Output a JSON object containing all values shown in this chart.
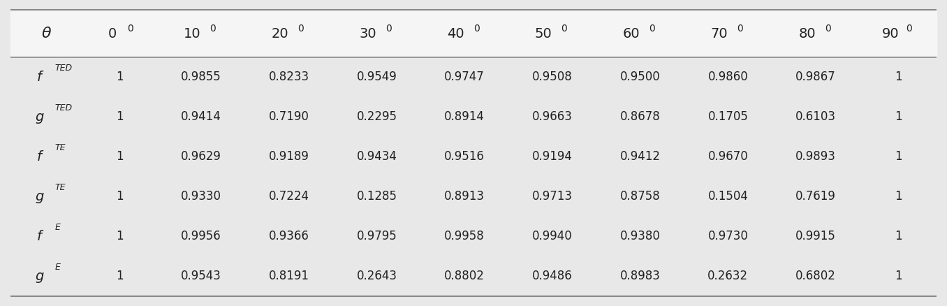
{
  "col_headers_base": [
    "θ",
    "0",
    "10",
    "20",
    "30",
    "40",
    "50",
    "60",
    "70",
    "80",
    "90"
  ],
  "row_labels_base": [
    "f",
    "g",
    "f",
    "g",
    "f",
    "g"
  ],
  "row_labels_super": [
    "TED",
    "TED",
    "TE",
    "TE",
    "E",
    "E"
  ],
  "data": [
    [
      "1",
      "0.9855",
      "0.8233",
      "0.9549",
      "0.9747",
      "0.9508",
      "0.9500",
      "0.9860",
      "0.9867",
      "1"
    ],
    [
      "1",
      "0.9414",
      "0.7190",
      "0.2295",
      "0.8914",
      "0.9663",
      "0.8678",
      "0.1705",
      "0.6103",
      "1"
    ],
    [
      "1",
      "0.9629",
      "0.9189",
      "0.9434",
      "0.9516",
      "0.9194",
      "0.9412",
      "0.9670",
      "0.9893",
      "1"
    ],
    [
      "1",
      "0.9330",
      "0.7224",
      "0.1285",
      "0.8913",
      "0.9713",
      "0.8758",
      "0.1504",
      "0.7619",
      "1"
    ],
    [
      "1",
      "0.9956",
      "0.9366",
      "0.9795",
      "0.9958",
      "0.9940",
      "0.9380",
      "0.9730",
      "0.9915",
      "1"
    ],
    [
      "1",
      "0.9543",
      "0.8191",
      "0.2643",
      "0.8802",
      "0.9486",
      "0.8983",
      "0.2632",
      "0.6802",
      "1"
    ]
  ],
  "background_color": "#e8e8e8",
  "header_background": "#f5f5f5",
  "text_color": "#222222",
  "line_color": "#888888",
  "fontsize_header": 14,
  "fontsize_data": 12,
  "figsize": [
    13.56,
    4.38
  ]
}
